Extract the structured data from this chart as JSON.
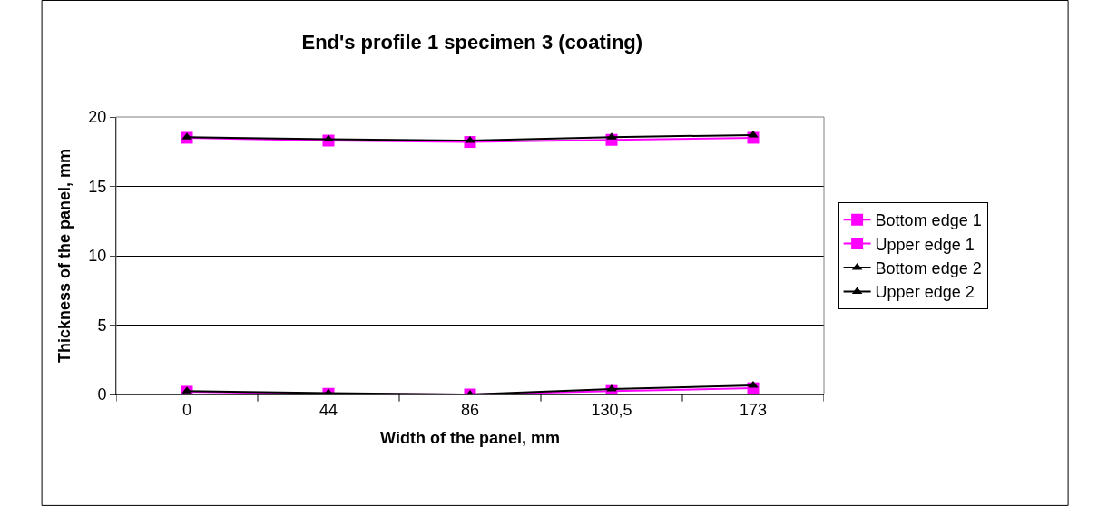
{
  "chart_data": {
    "type": "line",
    "title": "End's profile 1 specimen 3 (coating)",
    "xlabel": "Width of the panel, mm",
    "ylabel": "Thickness of the panel, mm",
    "categories": [
      "0",
      "44",
      "86",
      "130,5",
      "173"
    ],
    "series": [
      {
        "name": "Bottom edge 1",
        "color": "#ff00ff",
        "marker": "square",
        "values": [
          0.2,
          0.05,
          0,
          0.25,
          0.45
        ]
      },
      {
        "name": "Upper edge 1",
        "color": "#ff00ff",
        "marker": "square",
        "values": [
          18.5,
          18.3,
          18.2,
          18.35,
          18.5
        ]
      },
      {
        "name": "Bottom edge 2",
        "color": "#000000",
        "marker": "triangle",
        "values": [
          0.25,
          0.1,
          0,
          0.4,
          0.65
        ]
      },
      {
        "name": "Upper edge 2",
        "color": "#000000",
        "marker": "triangle",
        "values": [
          18.55,
          18.4,
          18.3,
          18.55,
          18.7
        ]
      }
    ],
    "ylim": [
      0,
      20
    ],
    "yticks": [
      0,
      5,
      10,
      15,
      20
    ],
    "grid": "y",
    "legend": "right",
    "line_style": "solid"
  }
}
